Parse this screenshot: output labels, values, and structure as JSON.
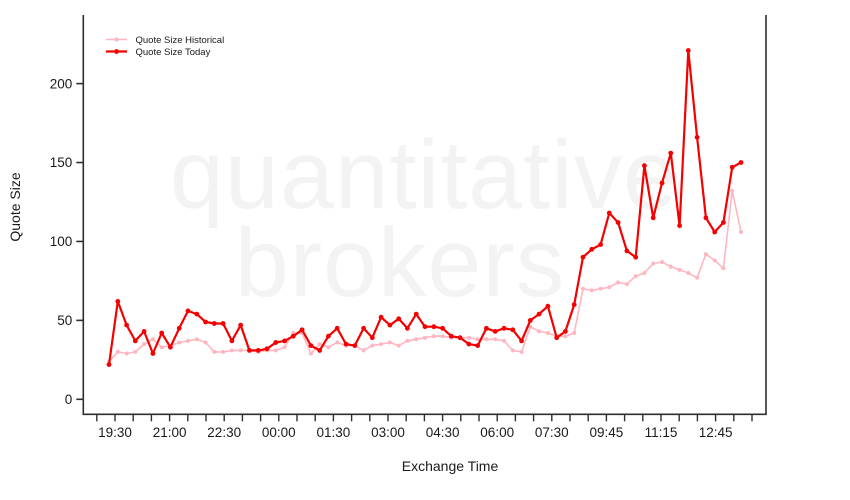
{
  "chart_data": {
    "type": "line",
    "title": "",
    "xlabel": "Exchange Time",
    "ylabel": "Quote Size",
    "watermark_line1": "quantitative",
    "watermark_line2": "brokers",
    "y_ticks": [
      0,
      50,
      100,
      150,
      200
    ],
    "ylim": [
      0,
      230
    ],
    "grid": "off",
    "legend_position": "top-left-inside",
    "x_tick_labels": [
      "19:30",
      "21:00",
      "22:30",
      "00:00",
      "01:30",
      "03:00",
      "04:30",
      "06:00",
      "07:30",
      "09:45",
      "11:15",
      "12:45"
    ],
    "series": [
      {
        "name": "Quote Size Historical",
        "color": "#ffb6c1",
        "values": [
          24,
          30,
          29,
          30,
          35,
          38,
          33,
          34,
          36,
          37,
          38,
          36,
          30,
          30,
          31,
          31,
          31,
          30,
          31,
          31,
          33,
          42,
          42,
          29,
          35,
          33,
          36,
          34,
          34,
          31,
          34,
          35,
          36,
          34,
          37,
          38,
          39,
          40,
          40,
          39,
          39,
          39,
          38,
          38,
          38,
          37,
          31,
          30,
          46,
          43,
          42,
          40,
          40,
          42,
          70,
          69,
          70,
          71,
          74,
          73,
          78,
          80,
          86,
          87,
          84,
          82,
          80,
          77,
          92,
          88,
          83,
          132,
          106
        ]
      },
      {
        "name": "Quote Size Today",
        "color": "#f40000",
        "values": [
          22,
          62,
          47,
          37,
          43,
          29,
          42,
          33,
          45,
          56,
          54,
          49,
          48,
          48,
          37,
          47,
          31,
          31,
          32,
          36,
          37,
          40,
          44,
          34,
          31,
          40,
          45,
          35,
          34,
          45,
          39,
          52,
          47,
          51,
          45,
          54,
          46,
          46,
          45,
          40,
          39,
          35,
          34,
          45,
          43,
          45,
          44,
          37,
          50,
          54,
          59,
          39,
          43,
          60,
          90,
          95,
          98,
          118,
          112,
          94,
          90,
          148,
          115,
          137,
          156,
          110,
          221,
          166,
          115,
          106,
          112,
          147,
          150
        ]
      }
    ]
  },
  "colors": {
    "axis": "#2e2e2e",
    "tick_label": "#1a1a1a",
    "legend_text": "#1a1a1a",
    "watermark": "#f3f3f3",
    "background": "#ffffff"
  }
}
